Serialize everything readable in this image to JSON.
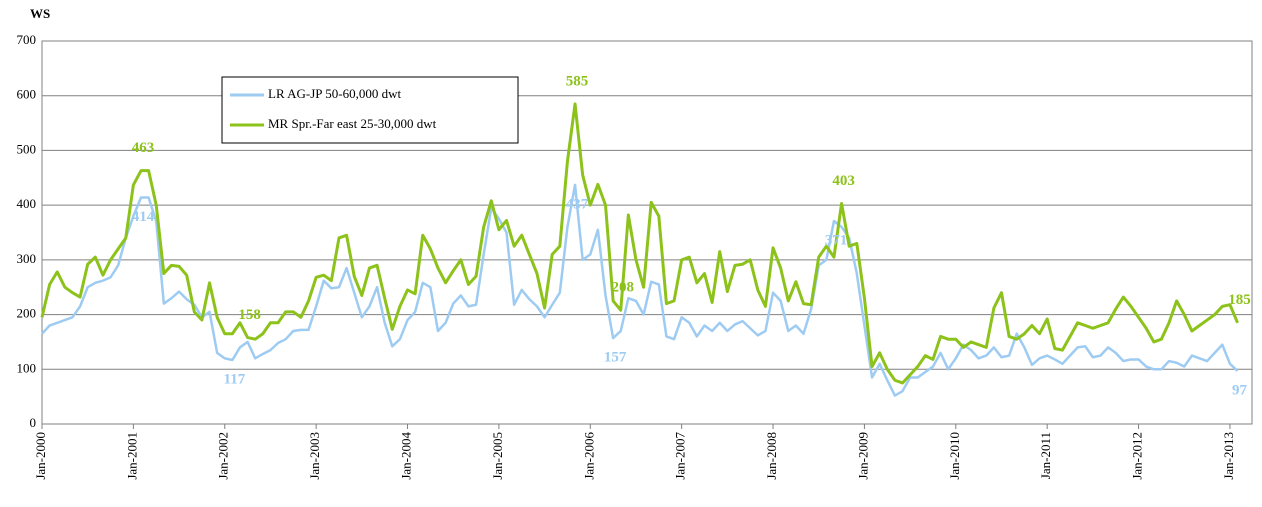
{
  "chart_data": {
    "type": "line",
    "y_label": "WS",
    "ylim": [
      0,
      700
    ],
    "yticks": [
      0,
      100,
      200,
      300,
      400,
      500,
      600,
      700
    ],
    "grid": true,
    "legend": "top-left",
    "categories": [
      "Jan-2000",
      null,
      null,
      null,
      null,
      null,
      null,
      null,
      null,
      null,
      null,
      null,
      "Jan-2001",
      null,
      null,
      null,
      null,
      null,
      null,
      null,
      null,
      null,
      null,
      null,
      "Jan-2002",
      null,
      null,
      null,
      null,
      null,
      null,
      null,
      null,
      null,
      null,
      null,
      "Jan-2003",
      null,
      null,
      null,
      null,
      null,
      null,
      null,
      null,
      null,
      null,
      null,
      "Jan-2004",
      null,
      null,
      null,
      null,
      null,
      null,
      null,
      null,
      null,
      null,
      null,
      "Jan-2005",
      null,
      null,
      null,
      null,
      null,
      null,
      null,
      null,
      null,
      null,
      null,
      "Jan-2006",
      null,
      null,
      null,
      null,
      null,
      null,
      null,
      null,
      null,
      null,
      null,
      "Jan-2007",
      null,
      null,
      null,
      null,
      null,
      null,
      null,
      null,
      null,
      null,
      null,
      "Jan-2008",
      null,
      null,
      null,
      null,
      null,
      null,
      null,
      null,
      null,
      null,
      null,
      "Jan-2009",
      null,
      null,
      null,
      null,
      null,
      null,
      null,
      null,
      null,
      null,
      null,
      "Jan-2010",
      null,
      null,
      null,
      null,
      null,
      null,
      null,
      null,
      null,
      null,
      null,
      "Jan-2011",
      null,
      null,
      null,
      null,
      null,
      null,
      null,
      null,
      null,
      null,
      null,
      "Jan-2012",
      null,
      null,
      null,
      null,
      null,
      null,
      null,
      null,
      null,
      null,
      null,
      "Jan-2013",
      null
    ],
    "series": [
      {
        "name": "LR AG-JP 50-60,000 dwt",
        "color": "#9ecbf2",
        "values": [
          165,
          180,
          185,
          190,
          195,
          215,
          250,
          258,
          262,
          268,
          290,
          340,
          380,
          414,
          414,
          370,
          220,
          230,
          242,
          228,
          218,
          195,
          205,
          130,
          120,
          117,
          140,
          150,
          120,
          128,
          135,
          148,
          155,
          170,
          172,
          172,
          215,
          262,
          248,
          250,
          285,
          240,
          195,
          215,
          250,
          185,
          142,
          155,
          190,
          205,
          258,
          250,
          170,
          185,
          220,
          235,
          215,
          218,
          310,
          395,
          375,
          350,
          218,
          245,
          228,
          215,
          195,
          218,
          240,
          360,
          437,
          300,
          310,
          355,
          235,
          157,
          170,
          230,
          225,
          200,
          260,
          255,
          160,
          155,
          195,
          185,
          160,
          180,
          170,
          185,
          170,
          182,
          188,
          175,
          162,
          170,
          240,
          225,
          170,
          180,
          165,
          210,
          290,
          300,
          371,
          360,
          340,
          275,
          180,
          85,
          110,
          80,
          52,
          60,
          85,
          85,
          95,
          105,
          130,
          100,
          120,
          145,
          135,
          120,
          125,
          140,
          122,
          125,
          165,
          140,
          108,
          120,
          125,
          118,
          110,
          125,
          140,
          142,
          122,
          125,
          140,
          130,
          115,
          118,
          118,
          105,
          100,
          100,
          115,
          112,
          105,
          125,
          120,
          115,
          130,
          145,
          110,
          97
        ],
        "value_labels": [
          null,
          null,
          null,
          null,
          null,
          null,
          null,
          null,
          null,
          null,
          null,
          null,
          null,
          "414",
          null,
          null,
          null,
          null,
          null,
          null,
          null,
          null,
          null,
          null,
          null,
          "117",
          null,
          null,
          null,
          null,
          null,
          null,
          null,
          null,
          null,
          null,
          null,
          null,
          null,
          null,
          null,
          null,
          null,
          null,
          null,
          null,
          null,
          null,
          null,
          null,
          null,
          null,
          null,
          null,
          null,
          null,
          null,
          null,
          null,
          null,
          null,
          null,
          null,
          null,
          null,
          null,
          null,
          null,
          null,
          null,
          "437",
          null,
          null,
          null,
          null,
          "157",
          null,
          null,
          null,
          null,
          null,
          null,
          null,
          null,
          null,
          null,
          null,
          null,
          null,
          null,
          null,
          null,
          null,
          null,
          null,
          null,
          null,
          null,
          null,
          null,
          null,
          null,
          null,
          null,
          "371",
          null,
          null,
          null,
          null,
          null,
          null,
          null,
          null,
          null,
          null,
          null,
          null,
          null,
          null,
          null,
          null,
          null,
          null,
          null,
          null,
          null,
          null,
          null,
          null,
          null,
          null,
          null,
          null,
          null,
          null,
          null,
          null,
          null,
          null,
          null,
          null,
          null,
          null,
          null,
          null,
          null,
          null,
          null,
          null,
          null,
          null,
          null,
          null,
          null,
          null,
          null,
          null,
          "97"
        ]
      },
      {
        "name": "MR Spr.-Far east 25-30,000 dwt",
        "color": "#8cc21a",
        "values": [
          195,
          255,
          278,
          250,
          240,
          232,
          292,
          305,
          272,
          300,
          320,
          340,
          437,
          463,
          463,
          400,
          275,
          290,
          288,
          272,
          205,
          190,
          258,
          195,
          165,
          165,
          185,
          158,
          155,
          165,
          185,
          185,
          205,
          205,
          195,
          225,
          268,
          272,
          262,
          340,
          345,
          270,
          235,
          285,
          290,
          230,
          173,
          215,
          245,
          238,
          345,
          320,
          285,
          258,
          280,
          300,
          255,
          270,
          360,
          408,
          355,
          372,
          325,
          345,
          310,
          275,
          212,
          310,
          325,
          480,
          585,
          455,
          400,
          438,
          400,
          225,
          208,
          382,
          300,
          250,
          405,
          380,
          220,
          225,
          300,
          305,
          258,
          275,
          222,
          315,
          242,
          290,
          292,
          300,
          245,
          215,
          322,
          285,
          225,
          260,
          220,
          218,
          305,
          325,
          305,
          403,
          325,
          330,
          230,
          105,
          130,
          100,
          80,
          75,
          90,
          105,
          125,
          118,
          160,
          155,
          155,
          140,
          150,
          145,
          140,
          212,
          240,
          160,
          155,
          165,
          180,
          165,
          192,
          138,
          135,
          160,
          185,
          180,
          175,
          180,
          185,
          210,
          232,
          215,
          195,
          175,
          150,
          155,
          185,
          225,
          200,
          170,
          180,
          190,
          200,
          215,
          218,
          185
        ],
        "value_labels": [
          null,
          null,
          null,
          null,
          null,
          null,
          null,
          null,
          null,
          null,
          null,
          null,
          null,
          "463",
          null,
          null,
          null,
          null,
          null,
          null,
          null,
          null,
          null,
          null,
          null,
          null,
          null,
          "158",
          null,
          null,
          null,
          null,
          null,
          null,
          null,
          null,
          null,
          null,
          null,
          null,
          null,
          null,
          null,
          null,
          null,
          null,
          null,
          null,
          null,
          null,
          null,
          null,
          null,
          null,
          null,
          null,
          null,
          null,
          null,
          null,
          null,
          null,
          null,
          null,
          null,
          null,
          null,
          null,
          null,
          null,
          "585",
          null,
          null,
          null,
          null,
          null,
          "208",
          null,
          null,
          null,
          null,
          null,
          null,
          null,
          null,
          null,
          null,
          null,
          null,
          null,
          null,
          null,
          null,
          null,
          null,
          null,
          null,
          null,
          null,
          null,
          null,
          null,
          null,
          null,
          null,
          "403",
          null,
          null,
          null,
          null,
          null,
          null,
          null,
          null,
          null,
          null,
          null,
          null,
          null,
          null,
          null,
          null,
          null,
          null,
          null,
          null,
          null,
          null,
          null,
          null,
          null,
          null,
          null,
          null,
          null,
          null,
          null,
          null,
          null,
          null,
          null,
          null,
          null,
          null,
          null,
          null,
          null,
          null,
          null,
          null,
          null,
          null,
          null,
          null,
          null,
          null,
          null,
          "185"
        ]
      }
    ]
  }
}
